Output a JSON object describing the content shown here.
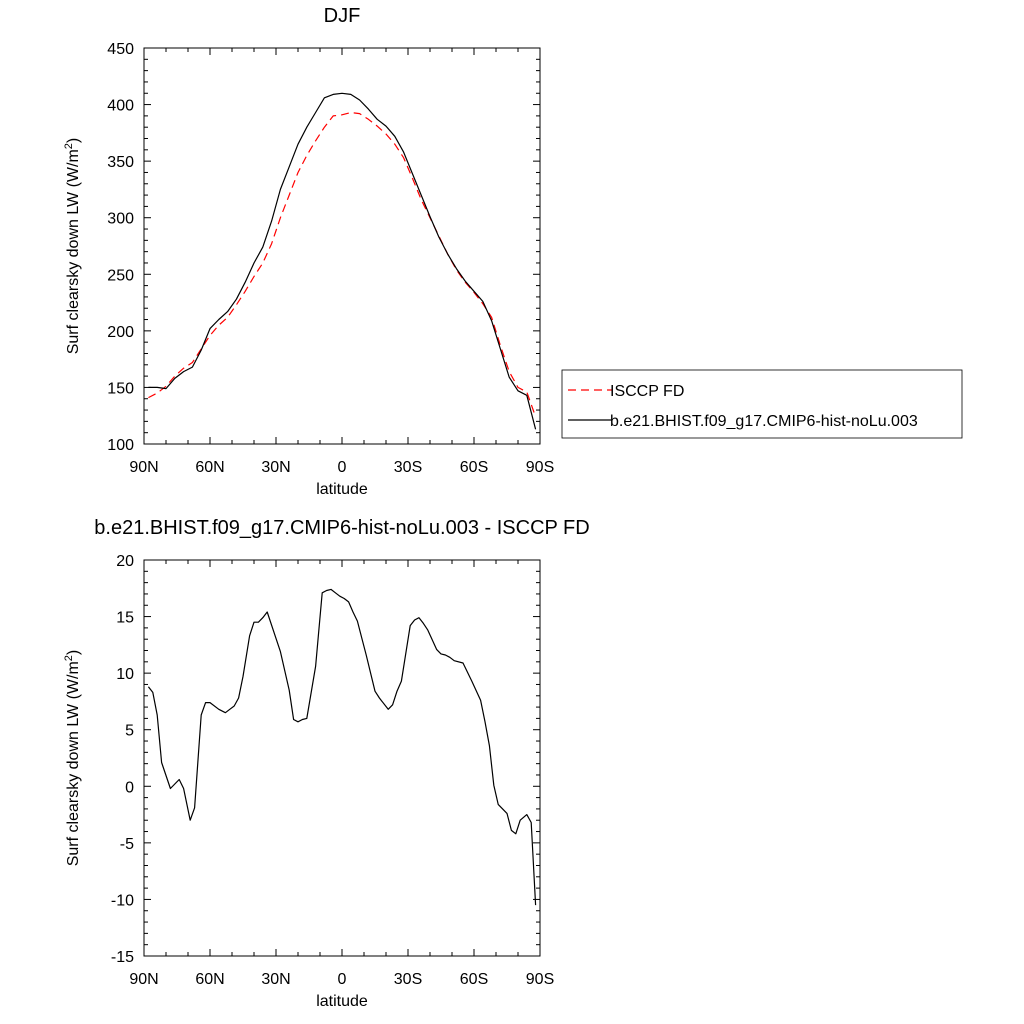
{
  "chart_data": [
    {
      "type": "line",
      "title": "DJF",
      "xlabel": "latitude",
      "ylabel": "Surf clearsky down LW (W/m",
      "ylabel_sup": "2",
      "ylabel_close": ")",
      "xlim": [
        90,
        -90
      ],
      "ylim": [
        100,
        450
      ],
      "x_ticks": [
        90,
        60,
        30,
        0,
        -30,
        -60,
        -90
      ],
      "x_tick_labels": [
        "90N",
        "60N",
        "30N",
        "0",
        "30S",
        "60S",
        "90S"
      ],
      "y_ticks": [
        100,
        150,
        200,
        250,
        300,
        350,
        400,
        450
      ],
      "y_tick_labels": [
        "100",
        "150",
        "200",
        "250",
        "300",
        "350",
        "400",
        "450"
      ],
      "legend_position": "right",
      "series": [
        {
          "name": "ISCCP FD",
          "color": "#ff0000",
          "dash": "dashed",
          "x": [
            88,
            84,
            80,
            76,
            72,
            68,
            64,
            60,
            56,
            52,
            48,
            44,
            40,
            36,
            32,
            28,
            24,
            20,
            16,
            12,
            8,
            4,
            0,
            -4,
            -8,
            -12,
            -16,
            -20,
            -24,
            -28,
            -32,
            -36,
            -40,
            -44,
            -48,
            -52,
            -56,
            -60,
            -64,
            -68,
            -72,
            -76,
            -80,
            -84,
            -88
          ],
          "y": [
            141,
            145,
            151,
            160,
            167,
            172,
            184,
            196,
            205,
            212,
            223,
            235,
            248,
            260,
            277,
            300,
            320,
            340,
            355,
            368,
            380,
            390,
            391,
            393,
            392,
            387,
            381,
            374,
            365,
            353,
            335,
            316,
            300,
            284,
            268,
            254,
            243,
            234,
            224,
            212,
            187,
            164,
            150,
            146,
            124
          ]
        },
        {
          "name": "b.e21.BHIST.f09_g17.CMIP6-hist-noLu.003",
          "color": "#000000",
          "dash": "solid",
          "x": [
            88,
            84,
            80,
            76,
            72,
            68,
            64,
            60,
            56,
            52,
            48,
            44,
            40,
            36,
            32,
            28,
            24,
            20,
            16,
            12,
            8,
            4,
            0,
            -4,
            -8,
            -12,
            -16,
            -20,
            -24,
            -28,
            -32,
            -36,
            -40,
            -44,
            -48,
            -52,
            -56,
            -60,
            -64,
            -68,
            -72,
            -76,
            -80,
            -84,
            -88
          ],
          "y": [
            150,
            150,
            149,
            158,
            164,
            168,
            183,
            202,
            210,
            217,
            228,
            243,
            260,
            274,
            297,
            325,
            345,
            365,
            380,
            393,
            406,
            409,
            410,
            409,
            404,
            396,
            387,
            381,
            372,
            358,
            339,
            320,
            301,
            283,
            268,
            255,
            244,
            235,
            226,
            209,
            184,
            159,
            147,
            143,
            113
          ]
        }
      ]
    },
    {
      "type": "line",
      "title": "b.e21.BHIST.f09_g17.CMIP6-hist-noLu.003 - ISCCP FD",
      "xlabel": "latitude",
      "ylabel": "Surf clearsky down LW (W/m",
      "ylabel_sup": "2",
      "ylabel_close": ")",
      "xlim": [
        90,
        -90
      ],
      "ylim": [
        -15,
        20
      ],
      "x_ticks": [
        90,
        60,
        30,
        0,
        -30,
        -60,
        -90
      ],
      "x_tick_labels": [
        "90N",
        "60N",
        "30N",
        "0",
        "30S",
        "60S",
        "90S"
      ],
      "y_ticks": [
        -15,
        -10,
        -5,
        0,
        5,
        10,
        15,
        20
      ],
      "y_tick_labels": [
        "-15",
        "-10",
        "-5",
        "0",
        "5",
        "10",
        "15",
        "20"
      ],
      "series": [
        {
          "color": "#000000",
          "dash": "solid",
          "x": [
            88,
            86,
            84,
            82,
            78,
            74,
            72,
            69,
            67,
            64,
            62,
            60,
            56,
            53,
            51,
            49,
            47,
            45,
            42,
            40,
            38,
            36,
            34,
            28,
            24,
            22,
            20,
            18,
            16,
            12,
            9,
            7,
            5,
            3,
            1,
            -1,
            -3,
            -5,
            -7,
            -9,
            -11,
            -15,
            -17,
            -21,
            -23,
            -25,
            -27,
            -31,
            -33,
            -35,
            -37,
            -39,
            -43,
            -45,
            -47,
            -49,
            -51,
            -55,
            -59,
            -63,
            -65,
            -67,
            -69,
            -71,
            -75,
            -77,
            -79,
            -81,
            -84,
            -86,
            -88
          ],
          "y": [
            8.8,
            8.3,
            6.3,
            2.1,
            -0.2,
            0.6,
            -0.2,
            -3,
            -1.9,
            6.3,
            7.4,
            7.4,
            6.8,
            6.5,
            6.8,
            7.1,
            7.8,
            9.7,
            13.3,
            14.5,
            14.5,
            14.9,
            15.4,
            11.9,
            8.5,
            5.9,
            5.7,
            5.9,
            6,
            10.6,
            17.1,
            17.3,
            17.4,
            17.1,
            16.8,
            16.6,
            16.3,
            15.4,
            14.6,
            13.1,
            11.6,
            8.4,
            7.8,
            6.8,
            7.2,
            8.4,
            9.3,
            14.2,
            14.7,
            14.9,
            14.4,
            13.8,
            12.1,
            11.7,
            11.6,
            11.4,
            11.1,
            10.9,
            9.3,
            7.6,
            5.7,
            3.6,
            0.1,
            -1.6,
            -2.4,
            -3.9,
            -4.2,
            -3,
            -2.5,
            -3.2,
            -10.5
          ]
        }
      ]
    }
  ]
}
